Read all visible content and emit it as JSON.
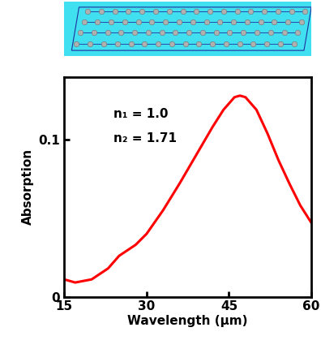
{
  "chart_data": {
    "type": "line",
    "x_label": "Wavelength (µm)",
    "y_label": "Absorption",
    "annotations": [
      "n₁ = 1.0",
      "n₂ = 1.71"
    ],
    "x": [
      15,
      17,
      20,
      23,
      25,
      28,
      30,
      33,
      36,
      39,
      42,
      44,
      46,
      47,
      48,
      50,
      52,
      54,
      56,
      58,
      60
    ],
    "series": [
      {
        "name": "Absorption",
        "color": "#ff0000",
        "values": [
          0.011,
          0.009,
          0.011,
          0.018,
          0.026,
          0.033,
          0.04,
          0.055,
          0.072,
          0.09,
          0.108,
          0.119,
          0.127,
          0.128,
          0.127,
          0.119,
          0.104,
          0.087,
          0.072,
          0.058,
          0.047
        ]
      }
    ],
    "xlim": [
      15,
      60
    ],
    "xticks": [
      15,
      30,
      45,
      60
    ],
    "ylim": [
      0,
      0.14
    ],
    "yticks": [
      0,
      0.1
    ],
    "grid": false
  }
}
